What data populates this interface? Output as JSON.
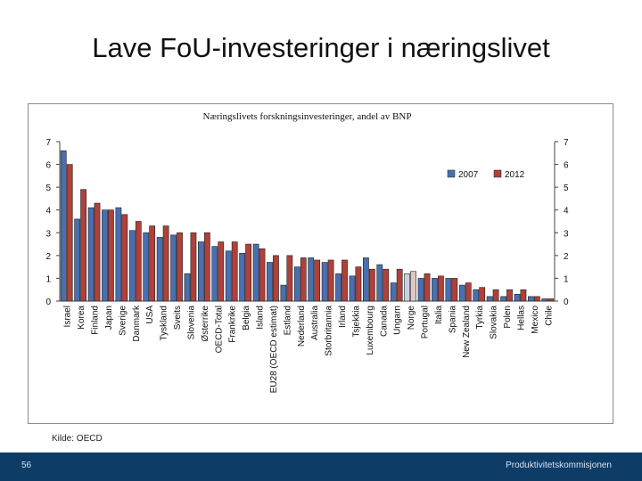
{
  "slide": {
    "title": "Lave FoU-investeringer i næringslivet",
    "source": "Kilde: OECD",
    "page_number": "56",
    "organization": "Produktivitetskommisjonen"
  },
  "colors": {
    "series_2007": "#4a6fb0",
    "series_2012": "#b0403a",
    "footer": "#0d3c67"
  },
  "chart_data": {
    "type": "bar",
    "title": "Næringslivets forskningsinvesteringer, andel av BNP",
    "xlabel": "",
    "ylabel": "",
    "ylim": [
      0,
      7
    ],
    "yticks": [
      0,
      1,
      2,
      3,
      4,
      5,
      6,
      7
    ],
    "grid": false,
    "legend_position": "top-right",
    "categories": [
      "Israel",
      "Korea",
      "Finland",
      "Japan",
      "Sverige",
      "Danmark",
      "USA",
      "Tyskland",
      "Sveits",
      "Slovenia",
      "Østerrike",
      "OECD-Total",
      "Frankrike",
      "Belgia",
      "Island",
      "EU28 (OECD estimat)",
      "Estland",
      "Nederland",
      "Australia",
      "Storbritannia",
      "Irland",
      "Tsjekkia",
      "Luxembourg",
      "Canada",
      "Ungarn",
      "Norge",
      "Portugal",
      "Italia",
      "Spania",
      "New Zealand",
      "Tyrkia",
      "Slovakia",
      "Polen",
      "Hellas",
      "Mexico",
      "Chile"
    ],
    "highlight_category": "Norge",
    "series": [
      {
        "name": "2007",
        "color": "#4a6fb0",
        "values": [
          6.6,
          3.6,
          4.1,
          4.0,
          4.1,
          3.1,
          3.0,
          2.8,
          2.9,
          1.2,
          2.6,
          2.4,
          2.2,
          2.1,
          2.5,
          1.7,
          0.7,
          1.5,
          1.9,
          1.7,
          1.2,
          1.1,
          1.9,
          1.6,
          0.8,
          1.2,
          1.0,
          1.0,
          1.0,
          0.7,
          0.5,
          0.2,
          0.2,
          0.3,
          0.2,
          0.1
        ]
      },
      {
        "name": "2012",
        "color": "#b0403a",
        "values": [
          6.0,
          4.9,
          4.3,
          4.0,
          3.8,
          3.5,
          3.3,
          3.3,
          3.0,
          3.0,
          3.0,
          2.6,
          2.6,
          2.5,
          2.3,
          2.0,
          2.0,
          1.9,
          1.8,
          1.8,
          1.8,
          1.5,
          1.4,
          1.4,
          1.4,
          1.3,
          1.2,
          1.1,
          1.0,
          0.8,
          0.6,
          0.5,
          0.5,
          0.5,
          0.2,
          0.1
        ]
      }
    ]
  }
}
